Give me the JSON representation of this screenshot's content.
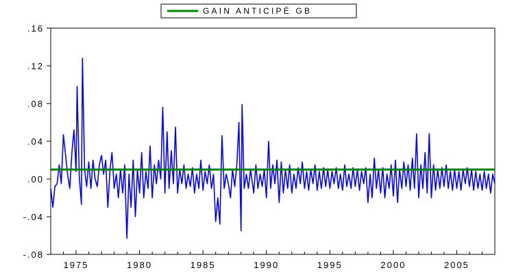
{
  "chart_data": {
    "type": "line",
    "title": "",
    "xlabel": "",
    "ylabel": "",
    "legend": {
      "placement": "top-center",
      "entries": [
        "GAIN ANTICIPÉ GB"
      ]
    },
    "grid": false,
    "xlim": [
      1973.0,
      2008.0
    ],
    "ylim": [
      -0.08,
      0.16
    ],
    "y_ticks": [
      -0.08,
      -0.04,
      0.0,
      0.04,
      0.08,
      0.12,
      0.16
    ],
    "y_tick_labels": [
      "-.08",
      "-.04",
      ".00",
      ".04",
      ".08",
      ".12",
      ".16"
    ],
    "x_ticks": [
      1975,
      1980,
      1985,
      1990,
      1995,
      2000,
      2005
    ],
    "x_tick_labels": [
      "1975",
      "1980",
      "1985",
      "1990",
      "1995",
      "2000",
      "2005"
    ],
    "series": [
      {
        "name": "GAIN ANTICIPÉ GB",
        "color": "#008000",
        "constant": 0.01,
        "x_range": [
          1973.0,
          2008.0
        ]
      },
      {
        "name": "",
        "color": "#0000ff",
        "points": [
          [
            1973.0,
            -0.01
          ],
          [
            1973.17,
            -0.03
          ],
          [
            1973.33,
            -0.008
          ],
          [
            1973.5,
            -0.005
          ],
          [
            1973.67,
            0.015
          ],
          [
            1973.83,
            -0.005
          ],
          [
            1974.0,
            0.047
          ],
          [
            1974.17,
            0.025
          ],
          [
            1974.33,
            0.005
          ],
          [
            1974.5,
            -0.01
          ],
          [
            1974.67,
            0.028
          ],
          [
            1974.83,
            0.052
          ],
          [
            1975.0,
            0.008
          ],
          [
            1975.08,
            0.098
          ],
          [
            1975.25,
            0.002
          ],
          [
            1975.42,
            -0.027
          ],
          [
            1975.5,
            0.128
          ],
          [
            1975.67,
            0.01
          ],
          [
            1975.83,
            -0.008
          ],
          [
            1976.0,
            0.018
          ],
          [
            1976.17,
            -0.01
          ],
          [
            1976.33,
            0.02
          ],
          [
            1976.5,
            0.0
          ],
          [
            1976.67,
            -0.008
          ],
          [
            1976.83,
            0.015
          ],
          [
            1977.0,
            0.025
          ],
          [
            1977.17,
            0.005
          ],
          [
            1977.33,
            0.02
          ],
          [
            1977.5,
            -0.03
          ],
          [
            1977.67,
            0.01
          ],
          [
            1977.83,
            0.028
          ],
          [
            1978.0,
            -0.01
          ],
          [
            1978.17,
            0.005
          ],
          [
            1978.33,
            -0.02
          ],
          [
            1978.5,
            0.01
          ],
          [
            1978.67,
            -0.015
          ],
          [
            1978.83,
            0.015
          ],
          [
            1979.0,
            -0.063
          ],
          [
            1979.17,
            0.005
          ],
          [
            1979.33,
            -0.03
          ],
          [
            1979.5,
            0.02
          ],
          [
            1979.67,
            -0.04
          ],
          [
            1979.83,
            0.01
          ],
          [
            1980.0,
            -0.015
          ],
          [
            1980.17,
            0.028
          ],
          [
            1980.33,
            -0.02
          ],
          [
            1980.5,
            0.008
          ],
          [
            1980.67,
            -0.01
          ],
          [
            1980.83,
            0.035
          ],
          [
            1981.0,
            -0.02
          ],
          [
            1981.17,
            0.015
          ],
          [
            1981.33,
            -0.005
          ],
          [
            1981.5,
            0.02
          ],
          [
            1981.67,
            0.0
          ],
          [
            1981.83,
            0.076
          ],
          [
            1982.0,
            -0.015
          ],
          [
            1982.17,
            0.05
          ],
          [
            1982.33,
            -0.01
          ],
          [
            1982.5,
            0.03
          ],
          [
            1982.67,
            -0.005
          ],
          [
            1982.83,
            0.055
          ],
          [
            1983.0,
            -0.015
          ],
          [
            1983.17,
            0.01
          ],
          [
            1983.33,
            -0.005
          ],
          [
            1983.5,
            0.015
          ],
          [
            1983.67,
            -0.01
          ],
          [
            1983.83,
            0.005
          ],
          [
            1984.0,
            -0.008
          ],
          [
            1984.17,
            0.012
          ],
          [
            1984.33,
            -0.015
          ],
          [
            1984.5,
            0.005
          ],
          [
            1984.67,
            -0.01
          ],
          [
            1984.83,
            0.02
          ],
          [
            1985.0,
            -0.012
          ],
          [
            1985.17,
            0.008
          ],
          [
            1985.33,
            -0.005
          ],
          [
            1985.5,
            0.015
          ],
          [
            1985.67,
            -0.01
          ],
          [
            1985.83,
            0.005
          ],
          [
            1986.0,
            -0.045
          ],
          [
            1986.17,
            -0.02
          ],
          [
            1986.33,
            -0.048
          ],
          [
            1986.5,
            0.046
          ],
          [
            1986.67,
            -0.01
          ],
          [
            1986.83,
            0.005
          ],
          [
            1987.0,
            -0.005
          ],
          [
            1987.17,
            -0.02
          ],
          [
            1987.33,
            0.01
          ],
          [
            1987.5,
            -0.008
          ],
          [
            1987.67,
            0.015
          ],
          [
            1987.83,
            0.06
          ],
          [
            1988.0,
            -0.055
          ],
          [
            1988.08,
            0.079
          ],
          [
            1988.25,
            -0.01
          ],
          [
            1988.42,
            0.005
          ],
          [
            1988.58,
            -0.01
          ],
          [
            1988.75,
            0.01
          ],
          [
            1989.0,
            -0.015
          ],
          [
            1989.17,
            0.015
          ],
          [
            1989.33,
            -0.01
          ],
          [
            1989.5,
            0.005
          ],
          [
            1989.67,
            -0.008
          ],
          [
            1989.83,
            0.01
          ],
          [
            1990.0,
            -0.02
          ],
          [
            1990.17,
            0.04
          ],
          [
            1990.33,
            -0.01
          ],
          [
            1990.5,
            0.015
          ],
          [
            1990.67,
            -0.005
          ],
          [
            1990.83,
            0.02
          ],
          [
            1991.0,
            -0.025
          ],
          [
            1991.17,
            0.018
          ],
          [
            1991.33,
            -0.015
          ],
          [
            1991.5,
            0.01
          ],
          [
            1991.67,
            -0.01
          ],
          [
            1991.83,
            0.015
          ],
          [
            1992.0,
            -0.015
          ],
          [
            1992.17,
            0.005
          ],
          [
            1992.33,
            -0.01
          ],
          [
            1992.5,
            0.012
          ],
          [
            1992.67,
            -0.005
          ],
          [
            1992.83,
            0.018
          ],
          [
            1993.0,
            -0.01
          ],
          [
            1993.17,
            0.008
          ],
          [
            1993.33,
            -0.012
          ],
          [
            1993.5,
            0.01
          ],
          [
            1993.67,
            -0.005
          ],
          [
            1993.83,
            0.015
          ],
          [
            1994.0,
            -0.012
          ],
          [
            1994.17,
            0.008
          ],
          [
            1994.33,
            -0.01
          ],
          [
            1994.5,
            0.012
          ],
          [
            1994.67,
            -0.008
          ],
          [
            1994.83,
            0.01
          ],
          [
            1995.0,
            -0.01
          ],
          [
            1995.17,
            0.008
          ],
          [
            1995.33,
            -0.005
          ],
          [
            1995.5,
            0.012
          ],
          [
            1995.67,
            -0.01
          ],
          [
            1995.83,
            0.005
          ],
          [
            1996.0,
            -0.012
          ],
          [
            1996.17,
            0.015
          ],
          [
            1996.33,
            -0.008
          ],
          [
            1996.5,
            0.005
          ],
          [
            1996.67,
            -0.01
          ],
          [
            1996.83,
            0.012
          ],
          [
            1997.0,
            -0.008
          ],
          [
            1997.17,
            0.01
          ],
          [
            1997.33,
            -0.012
          ],
          [
            1997.5,
            0.008
          ],
          [
            1997.67,
            -0.005
          ],
          [
            1997.83,
            0.012
          ],
          [
            1998.0,
            -0.025
          ],
          [
            1998.17,
            0.005
          ],
          [
            1998.33,
            -0.02
          ],
          [
            1998.5,
            0.022
          ],
          [
            1998.67,
            -0.01
          ],
          [
            1998.83,
            0.01
          ],
          [
            1999.0,
            -0.015
          ],
          [
            1999.17,
            0.012
          ],
          [
            1999.33,
            -0.02
          ],
          [
            1999.5,
            0.005
          ],
          [
            1999.67,
            -0.01
          ],
          [
            1999.83,
            0.015
          ],
          [
            2000.0,
            -0.018
          ],
          [
            2000.17,
            0.02
          ],
          [
            2000.33,
            -0.025
          ],
          [
            2000.5,
            0.01
          ],
          [
            2000.67,
            -0.01
          ],
          [
            2000.83,
            0.018
          ],
          [
            2001.0,
            -0.008
          ],
          [
            2001.17,
            0.015
          ],
          [
            2001.33,
            -0.012
          ],
          [
            2001.5,
            0.022
          ],
          [
            2001.67,
            -0.01
          ],
          [
            2001.83,
            0.048
          ],
          [
            2002.0,
            -0.02
          ],
          [
            2002.17,
            0.015
          ],
          [
            2002.33,
            -0.01
          ],
          [
            2002.5,
            0.028
          ],
          [
            2002.67,
            -0.015
          ],
          [
            2002.83,
            0.048
          ],
          [
            2003.0,
            -0.02
          ],
          [
            2003.17,
            0.015
          ],
          [
            2003.33,
            -0.012
          ],
          [
            2003.5,
            0.01
          ],
          [
            2003.67,
            -0.01
          ],
          [
            2003.83,
            0.012
          ],
          [
            2004.0,
            -0.008
          ],
          [
            2004.17,
            0.015
          ],
          [
            2004.33,
            -0.01
          ],
          [
            2004.5,
            0.008
          ],
          [
            2004.67,
            -0.012
          ],
          [
            2004.83,
            0.01
          ],
          [
            2005.0,
            -0.01
          ],
          [
            2005.17,
            0.008
          ],
          [
            2005.33,
            -0.012
          ],
          [
            2005.5,
            0.01
          ],
          [
            2005.67,
            -0.005
          ],
          [
            2005.83,
            0.012
          ],
          [
            2006.0,
            -0.008
          ],
          [
            2006.17,
            0.01
          ],
          [
            2006.33,
            -0.012
          ],
          [
            2006.5,
            0.008
          ],
          [
            2006.67,
            -0.01
          ],
          [
            2006.83,
            0.005
          ],
          [
            2007.0,
            -0.012
          ],
          [
            2007.17,
            0.008
          ],
          [
            2007.33,
            -0.01
          ],
          [
            2007.5,
            0.005
          ],
          [
            2007.67,
            -0.015
          ],
          [
            2007.83,
            0.005
          ],
          [
            2008.0,
            -0.005
          ]
        ]
      }
    ]
  }
}
